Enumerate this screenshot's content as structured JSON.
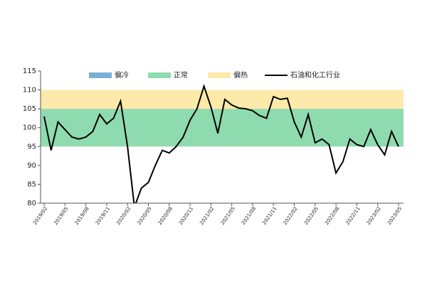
{
  "chart_data": {
    "type": "line",
    "categories": [
      "2019/02",
      null,
      null,
      "2019/05",
      null,
      null,
      "2019/08",
      null,
      null,
      "2019/11",
      null,
      null,
      "2020/02",
      null,
      null,
      "2020/05",
      null,
      null,
      "2020/08",
      null,
      null,
      "2020/11",
      null,
      null,
      "2021/02",
      null,
      null,
      "2021/05",
      null,
      null,
      "2021/08",
      null,
      null,
      "2021/11",
      null,
      null,
      "2022/02",
      null,
      null,
      "2022/05",
      null,
      null,
      "2022/08",
      null,
      null,
      "2022/11",
      null,
      null,
      "2023/02",
      null,
      null,
      "2023/05"
    ],
    "series": [
      {
        "name": "石油和化工行业",
        "color": "#000000",
        "values": [
          103,
          94,
          101.5,
          99.5,
          97.5,
          97,
          97.5,
          99,
          103.5,
          101,
          102.5,
          107,
          95,
          79,
          84,
          85.5,
          90,
          94,
          93.3,
          95,
          97.5,
          102,
          105,
          111,
          105.5,
          98.5,
          107.5,
          106,
          105.2,
          105,
          104.5,
          103.2,
          102.5,
          108.2,
          107.5,
          107.8,
          101.5,
          97.5,
          103.5,
          96,
          97,
          95.5,
          88,
          91,
          97,
          95.5,
          95,
          99.5,
          95.5,
          92.8,
          99,
          95
        ]
      }
    ],
    "bands": [
      {
        "name": "偏冷",
        "color": "#7bafd4"
      },
      {
        "name": "正常",
        "color": "#8fdbb0",
        "range": [
          95,
          105
        ]
      },
      {
        "name": "偏热",
        "color": "#fde9a9",
        "range": [
          105,
          110
        ]
      }
    ],
    "ylim": [
      80,
      115
    ],
    "yticks": [
      80,
      85,
      90,
      95,
      100,
      105,
      110,
      115
    ]
  }
}
